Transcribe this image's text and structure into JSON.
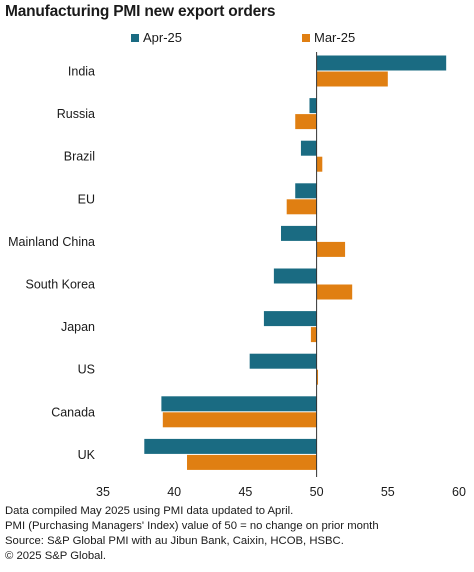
{
  "title": "Manufacturing PMI new export orders",
  "colors": {
    "apr": "#1a6b82",
    "mar": "#e07f12",
    "axis": "#333333",
    "text": "#1a1a1a"
  },
  "chart_data": {
    "type": "bar",
    "orientation": "horizontal",
    "title": "Manufacturing PMI new export orders",
    "categories": [
      "India",
      "Russia",
      "Brazil",
      "EU",
      "Mainland China",
      "South Korea",
      "Japan",
      "US",
      "Canada",
      "UK"
    ],
    "series": [
      {
        "name": "Apr-25",
        "color": "#1a6b82",
        "values": [
          59.1,
          49.5,
          48.9,
          48.5,
          47.5,
          47.0,
          46.3,
          45.3,
          39.1,
          37.9
        ]
      },
      {
        "name": "Mar-25",
        "color": "#e07f12",
        "values": [
          55.0,
          48.5,
          50.4,
          47.9,
          52.0,
          52.5,
          49.6,
          50.1,
          39.2,
          40.9
        ]
      }
    ],
    "baseline": 50,
    "xlim": [
      35,
      60
    ],
    "xticks": [
      35,
      40,
      45,
      50,
      55,
      60
    ],
    "xlabel": "",
    "ylabel": "",
    "grid": false,
    "legend_position": "top"
  },
  "notes": [
    "Data compiled May 2025 using PMI data updated to April.",
    "PMI (Purchasing Managers' Index) value of 50 = no change on prior month",
    "Source: S&P Global PMI with au Jibun Bank, Caixin, HCOB, HSBC.",
    "© 2025 S&P Global."
  ]
}
